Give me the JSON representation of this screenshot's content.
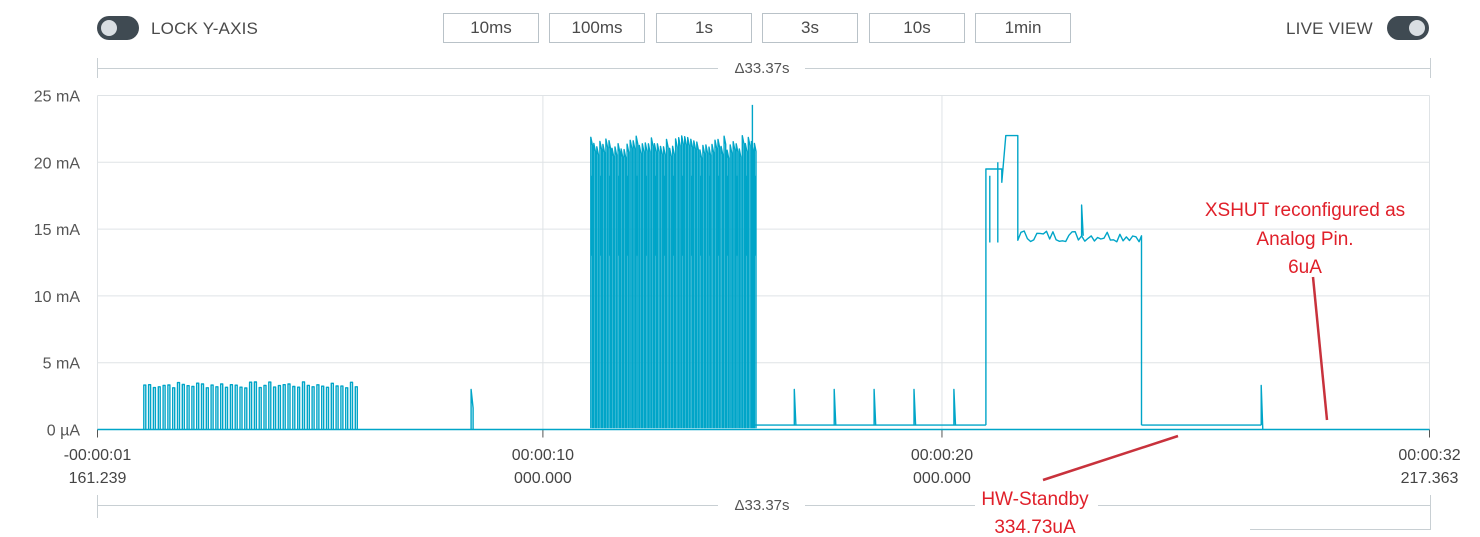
{
  "toolbar": {
    "lock_label": "LOCK Y-AXIS",
    "live_label": "LIVE VIEW",
    "time_buttons": [
      "10ms",
      "100ms",
      "1s",
      "3s",
      "10s",
      "1min"
    ]
  },
  "delta": {
    "top": "Δ33.37s",
    "bottom": "Δ33.37s"
  },
  "chart_data": {
    "type": "line",
    "color": "#00a5c8",
    "y_ticks": [
      "25 mA",
      "20 mA",
      "15 mA",
      "10 mA",
      "5 mA",
      "0 µA"
    ],
    "x_ticks": [
      {
        "line1": "-00:00:01",
        "line2": "161.239"
      },
      {
        "line1": "00:00:10",
        "line2": "000.000"
      },
      {
        "line1": "00:00:20",
        "line2": "000.000"
      },
      {
        "line1": "00:00:32",
        "line2": "217.363"
      }
    ],
    "ylim_mA": [
      0,
      25
    ],
    "xlim_s": [
      -1.161,
      32.217
    ],
    "grid": true,
    "segments": [
      {
        "name": "burst-1",
        "x_start": 0.0,
        "x_end": 5.3,
        "peak_mA": 3.5,
        "base_mA": 0.0,
        "pulses": 45
      },
      {
        "name": "spike",
        "x": 8.2,
        "peak_mA": 3.0
      },
      {
        "name": "burst-2",
        "x_start": 11.2,
        "x_end": 15.3,
        "peak_mA": 22.0,
        "base_mA": 0.0,
        "pulses": 55,
        "max_mA": 24.3
      },
      {
        "name": "standby-1",
        "x_start": 15.3,
        "x_end": 21.1,
        "level_mA": 0.33,
        "spikes_x": [
          16.3,
          17.3,
          18.3,
          19.3,
          20.3
        ],
        "spike_mA": 3.0
      },
      {
        "name": "active",
        "x_start": 21.1,
        "x_end": 25.0,
        "level_mA": 14.5,
        "peak_mA": 22.0,
        "spike_x": 23.5,
        "spike_mA": 16.8
      },
      {
        "name": "standby-2",
        "x_start": 25.0,
        "x_end": 28.0,
        "level_mA": 0.33,
        "spike_x": 28.0,
        "spike_mA": 3.3
      },
      {
        "name": "analog",
        "x_start": 28.0,
        "x_end": 32.217,
        "level_mA": 0.006
      }
    ],
    "annotations": [
      {
        "lines": [
          "XSHUT reconfigured as",
          "Analog Pin.",
          "6uA"
        ]
      },
      {
        "lines": [
          "HW-Standby",
          "334.73uA"
        ]
      }
    ]
  }
}
